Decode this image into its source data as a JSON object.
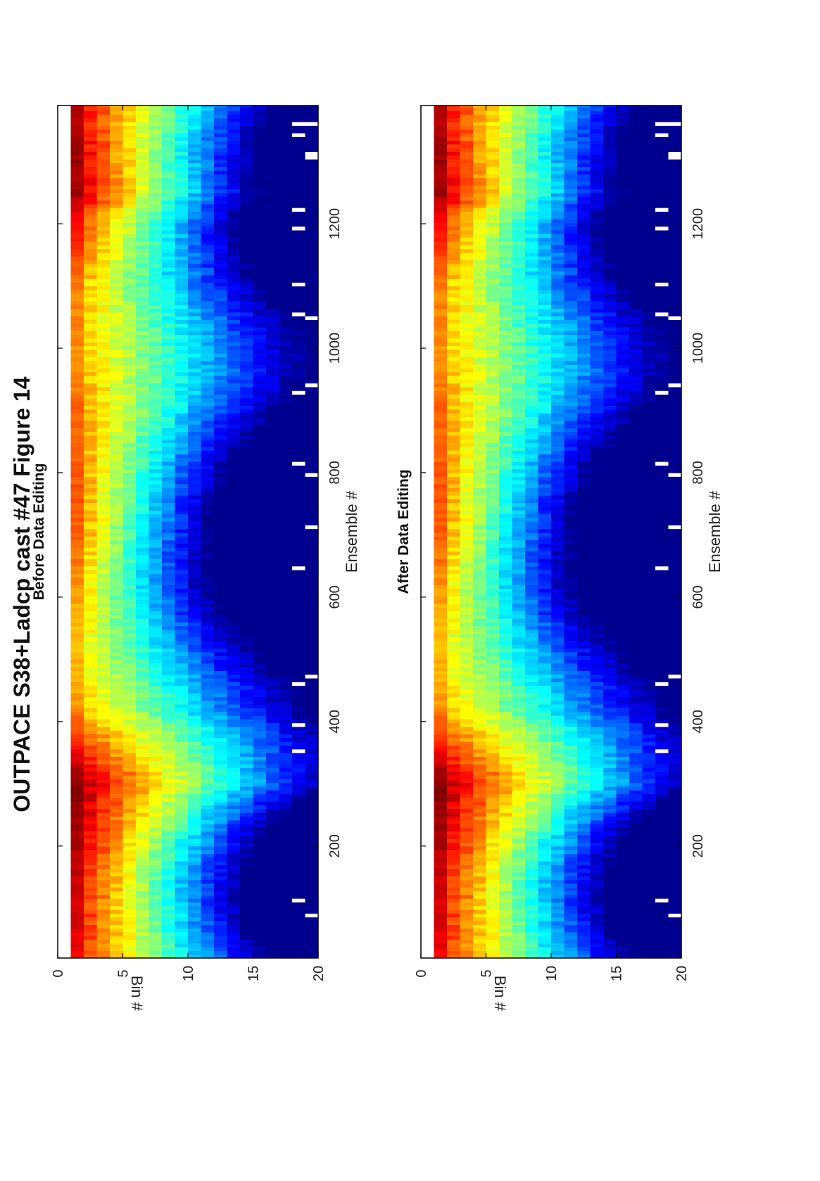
{
  "figure": {
    "title": "OUTPACE S38+Ladcp cast #47  Figure 14"
  },
  "colors": {
    "jet": [
      "#00008f",
      "#0000ff",
      "#0080ff",
      "#00ffff",
      "#80ff80",
      "#ffff00",
      "#ff8000",
      "#ff0000",
      "#800000"
    ]
  },
  "chart_data": [
    {
      "type": "heatmap",
      "title": "Before Data Editing",
      "xlabel": "Ensemble #",
      "ylabel": "Bin #",
      "xlim": [
        20,
        1390
      ],
      "ylim": [
        0,
        20
      ],
      "x_ticks": [
        200,
        400,
        600,
        800,
        1000,
        1200
      ],
      "y_ticks": [
        0,
        5,
        10,
        15,
        20
      ],
      "bins": 20,
      "colormap": "jet",
      "value_range": [
        0,
        1
      ],
      "missing_data": "white",
      "profile_keypoints": {
        "ensembles": [
          20,
          150,
          300,
          420,
          500,
          600,
          700,
          800,
          900,
          1000,
          1100,
          1200,
          1250,
          1390
        ],
        "intensity": [
          0.86,
          0.9,
          0.97,
          0.7,
          0.66,
          0.68,
          0.76,
          0.76,
          0.74,
          0.7,
          0.72,
          0.84,
          0.95,
          0.9
        ]
      }
    },
    {
      "type": "heatmap",
      "title": "After Data Editing",
      "xlabel": "Ensemble #",
      "ylabel": "Bin #",
      "xlim": [
        20,
        1390
      ],
      "ylim": [
        0,
        20
      ],
      "x_ticks": [
        200,
        400,
        600,
        800,
        1000,
        1200
      ],
      "y_ticks": [
        0,
        5,
        10,
        15,
        20
      ],
      "bins": 20,
      "colormap": "jet",
      "value_range": [
        0,
        1
      ],
      "missing_data": "white",
      "profile_keypoints": {
        "ensembles": [
          20,
          150,
          300,
          420,
          500,
          600,
          700,
          800,
          900,
          1000,
          1100,
          1200,
          1250,
          1390
        ],
        "intensity": [
          0.86,
          0.9,
          0.97,
          0.7,
          0.66,
          0.68,
          0.76,
          0.76,
          0.74,
          0.7,
          0.72,
          0.84,
          0.95,
          0.9
        ]
      }
    }
  ]
}
